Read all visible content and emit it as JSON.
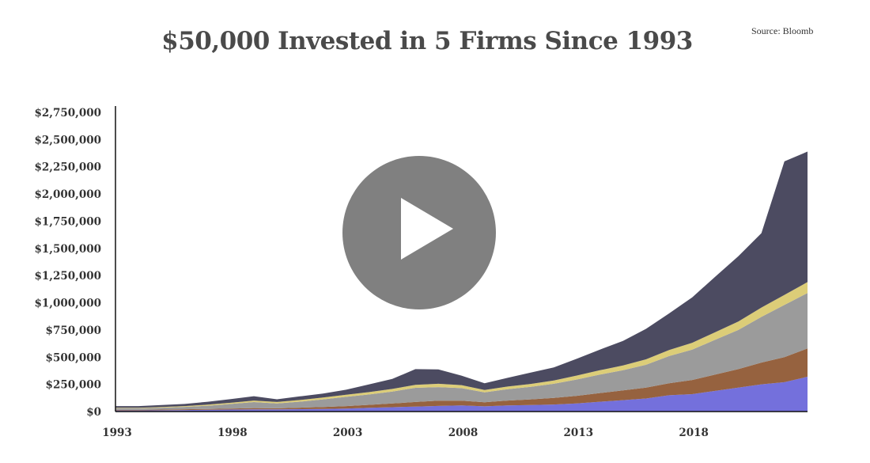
{
  "title": "$50,000 Invested in 5 Firms Since 1993",
  "source": "Source: Bloomberg",
  "colors": {
    "series": [
      "#7470dc",
      "#96623f",
      "#9b9b9b",
      "#dccd78",
      "#4c4b61"
    ],
    "axis": "#111111",
    "text": "#333333",
    "play_button": "#6e6e6e"
  },
  "icons": {
    "play": "play-icon"
  },
  "chart_data": {
    "type": "area",
    "stacked": true,
    "title": "$50,000 Invested in 5 Firms Since 1993",
    "ylim": [
      0,
      2750000
    ],
    "xlim": [
      1993,
      2023
    ],
    "yticks": [
      0,
      250000,
      500000,
      750000,
      1000000,
      1250000,
      1500000,
      1750000,
      2000000,
      2250000,
      2500000,
      2750000
    ],
    "ytick_labels": [
      "$0",
      "$250,000",
      "$500,000",
      "$750,000",
      "$1,000,000",
      "$1,250,000",
      "$1,500,000",
      "$1,750,000",
      "$2,000,000",
      "$2,250,000",
      "$2,500,000",
      "$2,750,000"
    ],
    "xticks": [
      1993,
      1998,
      2003,
      2008,
      2013,
      2018
    ],
    "xtick_labels": [
      "1993",
      "1998",
      "2003",
      "2008",
      "2013",
      "2018"
    ],
    "grid": false,
    "legend": "none",
    "x": [
      1993,
      1994,
      1995,
      1996,
      1997,
      1998,
      1999,
      2000,
      2001,
      2002,
      2003,
      2004,
      2005,
      2006,
      2007,
      2008,
      2009,
      2010,
      2011,
      2012,
      2013,
      2014,
      2015,
      2016,
      2017,
      2018,
      2019,
      2020,
      2021,
      2022,
      2023
    ],
    "series": [
      {
        "values": [
          10000,
          10000,
          12000,
          14000,
          16000,
          18000,
          20000,
          20000,
          22000,
          24000,
          28000,
          34000,
          40000,
          46000,
          52000,
          56000,
          48000,
          56000,
          60000,
          65000,
          75000,
          90000,
          105000,
          120000,
          150000,
          160000,
          190000,
          220000,
          250000,
          270000,
          320000
        ]
      },
      {
        "values": [
          5000,
          5000,
          6000,
          7000,
          8000,
          10000,
          12000,
          10000,
          14000,
          18000,
          22000,
          28000,
          34000,
          42000,
          48000,
          44000,
          38000,
          45000,
          52000,
          60000,
          70000,
          80000,
          90000,
          100000,
          110000,
          130000,
          150000,
          170000,
          200000,
          230000,
          260000
        ]
      },
      {
        "values": [
          15000,
          15000,
          18000,
          22000,
          30000,
          42000,
          55000,
          45000,
          55000,
          70000,
          85000,
          95000,
          110000,
          130000,
          125000,
          115000,
          90000,
          105000,
          115000,
          130000,
          150000,
          170000,
          185000,
          210000,
          250000,
          280000,
          320000,
          360000,
          420000,
          480000,
          510000
        ]
      },
      {
        "values": [
          5000,
          5000,
          6000,
          7000,
          9000,
          11000,
          14000,
          13000,
          15000,
          17000,
          20000,
          22000,
          24000,
          28000,
          30000,
          28000,
          22000,
          24000,
          27000,
          30000,
          36000,
          40000,
          44000,
          50000,
          56000,
          62000,
          70000,
          78000,
          86000,
          92000,
          100000
        ]
      },
      {
        "values": [
          15000,
          15000,
          18000,
          20000,
          27000,
          34000,
          40000,
          25000,
          34000,
          36000,
          46000,
          71000,
          92000,
          144000,
          132000,
          87000,
          62000,
          80000,
          104000,
          120000,
          154000,
          190000,
          226000,
          280000,
          336000,
          418000,
          510000,
          600000,
          684000,
          1228000,
          1200000
        ]
      }
    ]
  }
}
